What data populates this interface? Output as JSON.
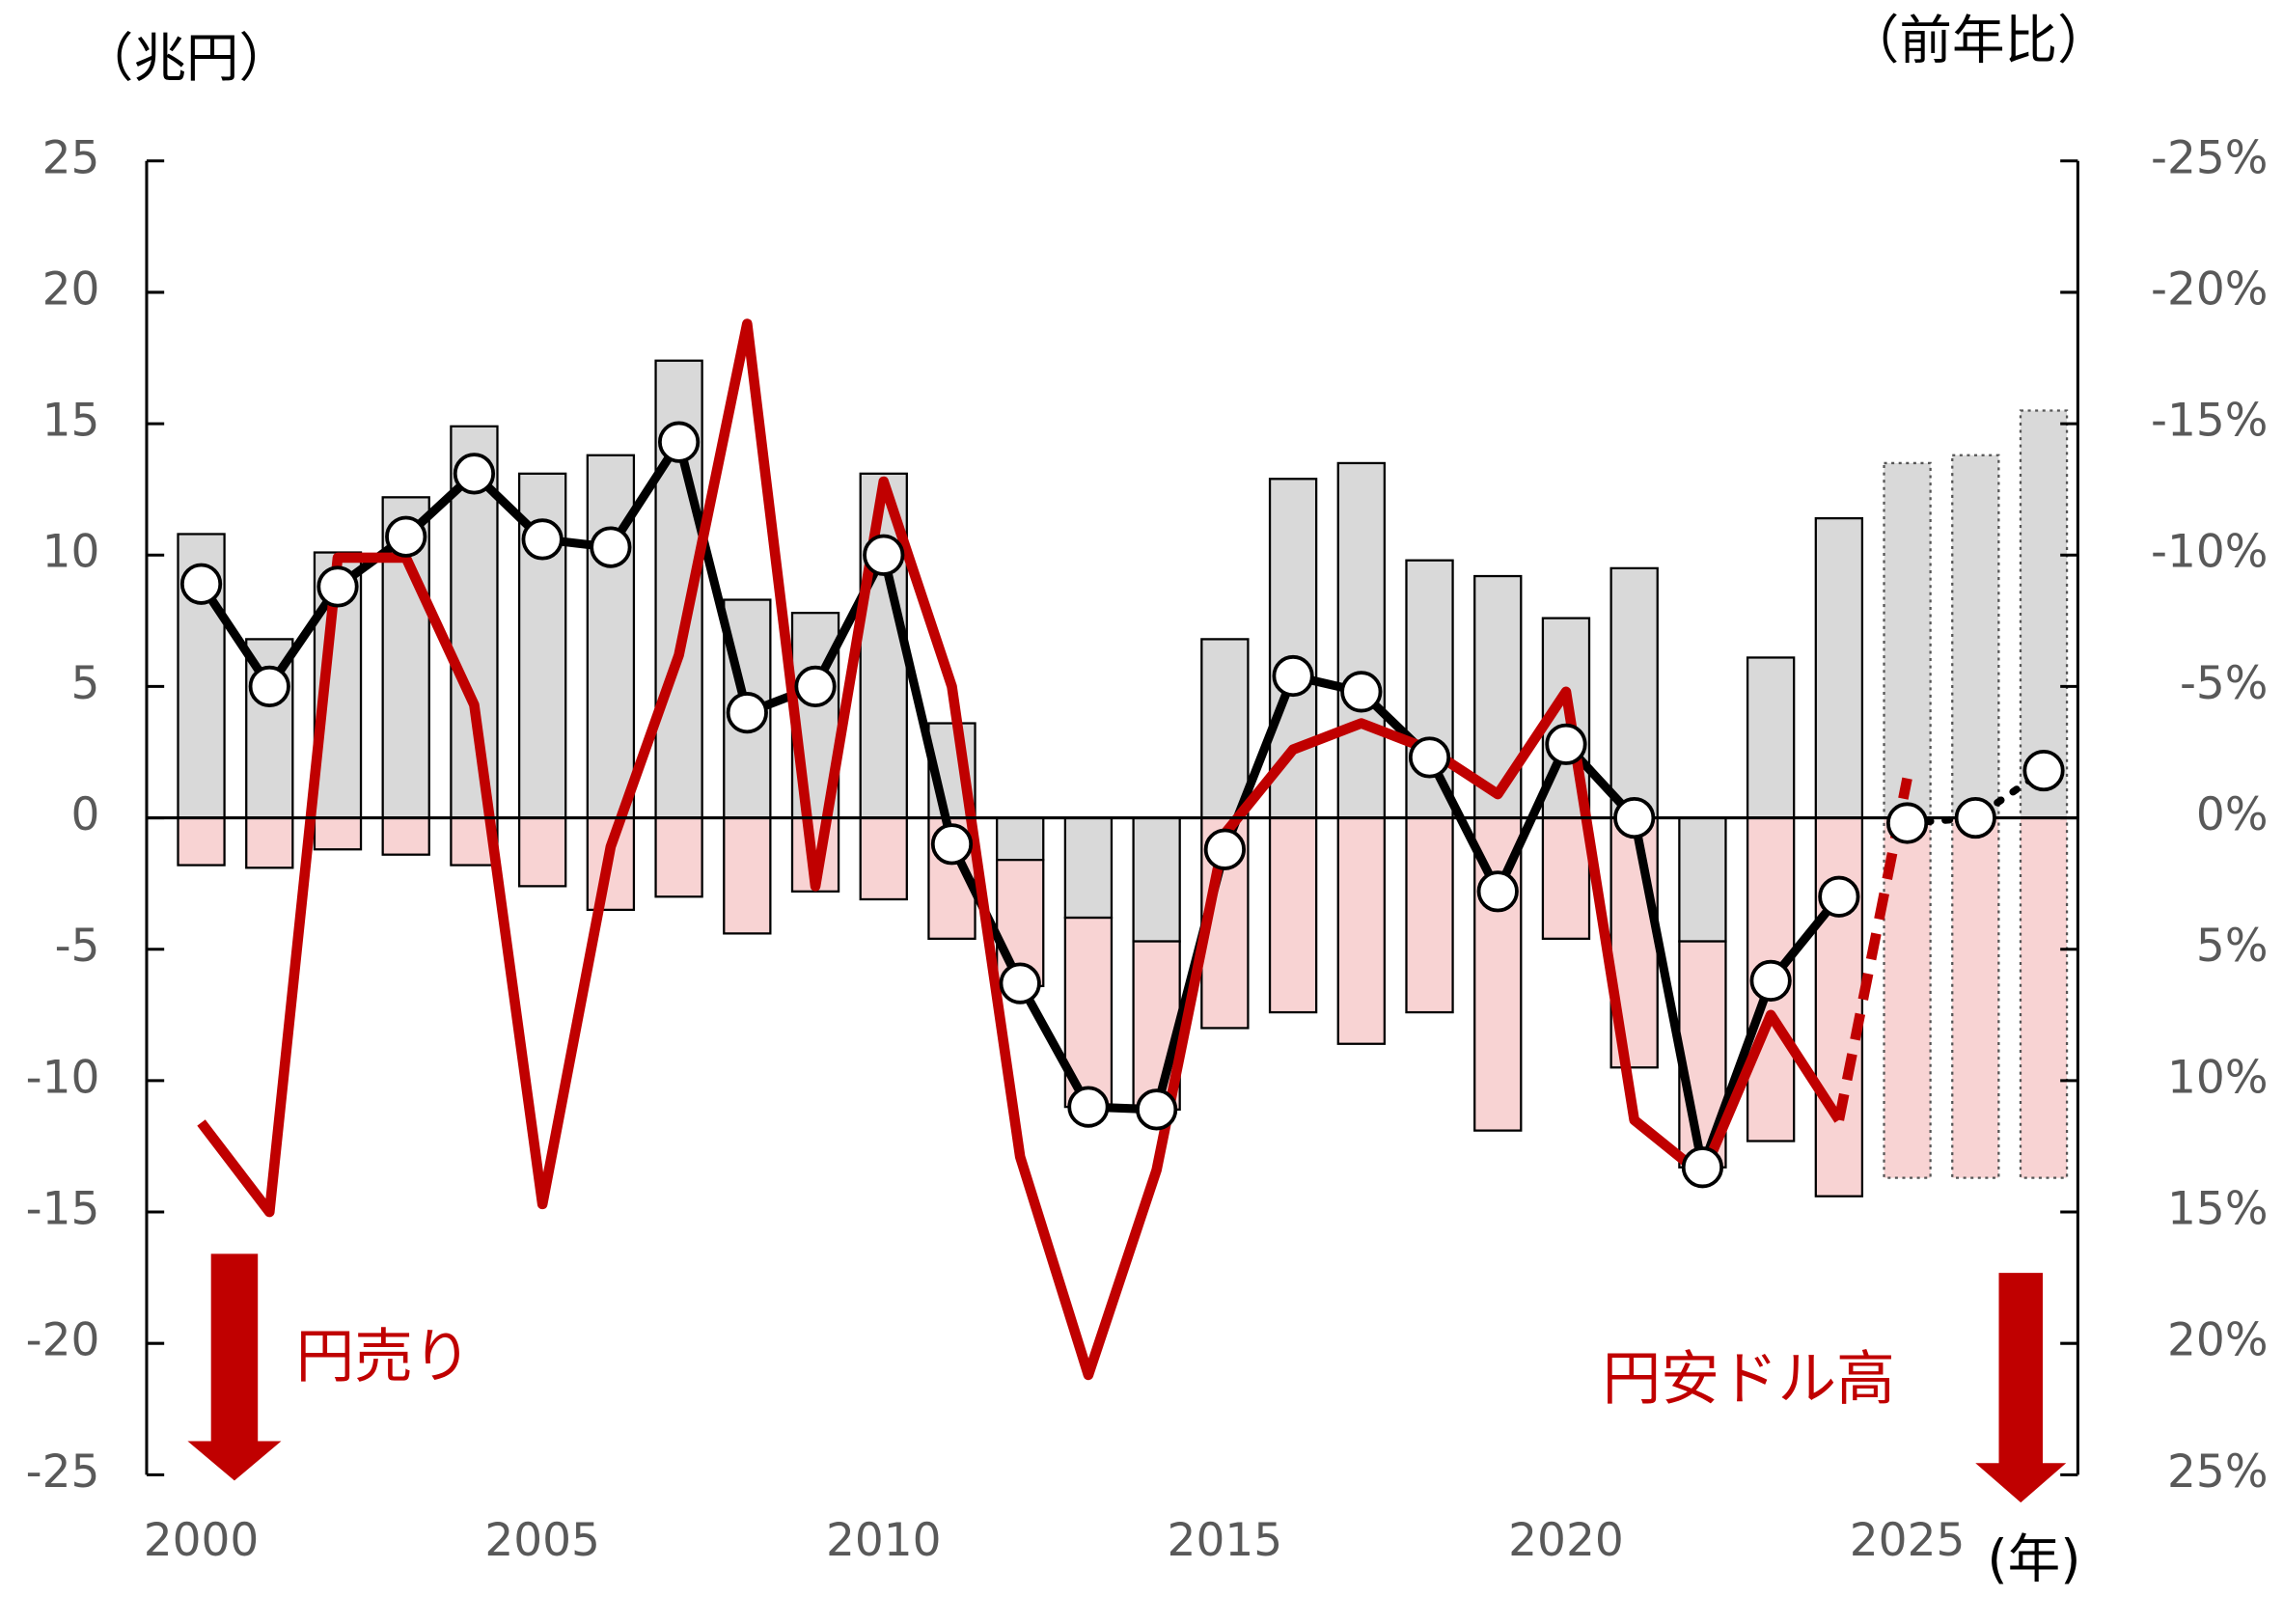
{
  "chart_data": {
    "type": "bar-line",
    "y_axis_label": "（兆円）",
    "y2_axis_label": "（前年比）",
    "x_axis_label": "(年)",
    "annotations": [
      "円売り",
      "円安ドル高"
    ],
    "x": [
      2000,
      2001,
      2002,
      2003,
      2004,
      2005,
      2006,
      2007,
      2008,
      2009,
      2010,
      2011,
      2012,
      2013,
      2014,
      2015,
      2016,
      2017,
      2018,
      2019,
      2020,
      2021,
      2022,
      2023,
      2024,
      2025,
      2026,
      2027
    ],
    "xlim": [
      1999.2,
      2027.5
    ],
    "xticks": [
      2000,
      2005,
      2010,
      2015,
      2020,
      2025
    ],
    "ylim": [
      -25,
      25
    ],
    "yticks": [
      25,
      20,
      15,
      10,
      5,
      0,
      -5,
      -10,
      -15,
      -20,
      -25
    ],
    "y2lim": [
      25,
      -25
    ],
    "y2ticks": [
      {
        "value": -25,
        "label": "-25%"
      },
      {
        "value": -20,
        "label": "-20%"
      },
      {
        "value": -15,
        "label": "-15%"
      },
      {
        "value": -10,
        "label": "-10%"
      },
      {
        "value": -5,
        "label": "-5%"
      },
      {
        "value": 0,
        "label": "0%"
      },
      {
        "value": 5,
        "label": "5%"
      },
      {
        "value": 10,
        "label": "10%"
      },
      {
        "value": 15,
        "label": "15%"
      },
      {
        "value": 20,
        "label": "20%"
      },
      {
        "value": 25,
        "label": "25%"
      }
    ],
    "series": [
      {
        "type": "bar",
        "color": "#d9d9d9",
        "style": "solid",
        "values": [
          10.8,
          6.8,
          10.1,
          12.2,
          14.9,
          13.1,
          13.8,
          17.4,
          8.3,
          7.8,
          13.1,
          3.6,
          -1.6,
          -3.8,
          -4.7,
          6.8,
          12.9,
          13.5,
          9.8,
          9.2,
          7.6,
          9.5,
          -4.7,
          6.1,
          11.4,
          null,
          null,
          null
        ]
      },
      {
        "type": "bar",
        "color": "#f8d3d3",
        "style": "solid",
        "values": [
          -1.8,
          -1.9,
          -1.2,
          -1.4,
          -1.8,
          -2.6,
          -3.5,
          -3.0,
          -4.4,
          -2.8,
          -3.1,
          -4.6,
          -4.8,
          -7.2,
          -6.4,
          -8.0,
          -7.4,
          -8.6,
          -7.4,
          -11.9,
          -4.6,
          -9.5,
          -8.6,
          -12.3,
          -14.4,
          null,
          null,
          null
        ]
      },
      {
        "type": "bar",
        "color": "#d9d9d9",
        "style": "dotted",
        "values": [
          null,
          null,
          null,
          null,
          null,
          null,
          null,
          null,
          null,
          null,
          null,
          null,
          null,
          null,
          null,
          null,
          null,
          null,
          null,
          null,
          null,
          null,
          null,
          null,
          null,
          13.5,
          13.8,
          15.5
        ]
      },
      {
        "type": "bar",
        "color": "#f8d3d3",
        "style": "dotted",
        "values": [
          null,
          null,
          null,
          null,
          null,
          null,
          null,
          null,
          null,
          null,
          null,
          null,
          null,
          null,
          null,
          null,
          null,
          null,
          null,
          null,
          null,
          null,
          null,
          null,
          null,
          -13.7,
          -13.7,
          -13.7
        ]
      },
      {
        "type": "line",
        "color": "#000000",
        "style": "solid",
        "markers": true,
        "values": [
          8.9,
          5.0,
          8.8,
          10.7,
          13.1,
          10.6,
          10.3,
          14.3,
          4.0,
          5.0,
          10.0,
          -1.0,
          -6.3,
          -11.0,
          -11.1,
          -1.2,
          5.4,
          4.8,
          2.3,
          -2.8,
          2.8,
          0.0,
          -13.3,
          -6.2,
          -3.0,
          null,
          null,
          null
        ]
      },
      {
        "type": "line",
        "color": "#000000",
        "style": "dotted",
        "markers": true,
        "values": [
          null,
          null,
          null,
          null,
          null,
          null,
          null,
          null,
          null,
          null,
          null,
          null,
          null,
          null,
          null,
          null,
          null,
          null,
          null,
          null,
          null,
          null,
          null,
          null,
          null,
          -0.2,
          0.0,
          1.8
        ]
      },
      {
        "type": "line",
        "axis": "y2",
        "color": "#c00000",
        "style": "solid",
        "markers": false,
        "values": [
          11.6,
          15.0,
          -9.9,
          -9.9,
          -4.3,
          14.7,
          1.1,
          -6.2,
          -18.8,
          2.6,
          -12.8,
          -5.0,
          12.9,
          21.2,
          13.4,
          0.6,
          -2.6,
          -3.6,
          -2.6,
          -0.9,
          -4.8,
          11.5,
          13.6,
          7.5,
          11.5,
          null,
          null,
          null
        ]
      },
      {
        "type": "line",
        "axis": "y2",
        "color": "#c00000",
        "style": "dashed",
        "markers": false,
        "values": [
          null,
          null,
          null,
          null,
          null,
          null,
          null,
          null,
          null,
          null,
          null,
          null,
          null,
          null,
          null,
          null,
          null,
          null,
          null,
          null,
          null,
          null,
          null,
          null,
          11.5,
          -1.5,
          null,
          null
        ]
      }
    ]
  }
}
